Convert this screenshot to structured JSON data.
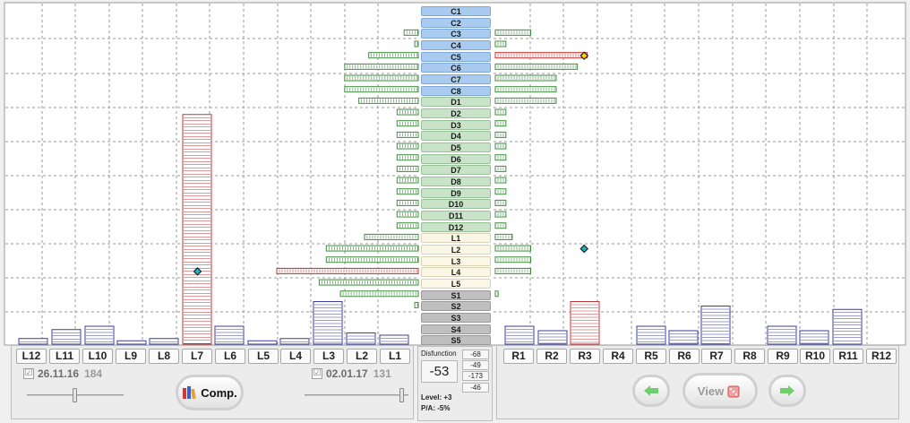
{
  "colors": {
    "blue_bar_stroke": "#3b3b9c",
    "red_bar_stroke": "#c33232",
    "green_bar_stroke": "#3f8a3f",
    "marker_yellow": "#ffd400",
    "marker_cyan": "#1fb5c8",
    "arrow_green": "#6fcf6f",
    "view_icon_red": "#e05a5a"
  },
  "vertebra_labels": [
    {
      "label": "C1",
      "group": "c"
    },
    {
      "label": "C2",
      "group": "c"
    },
    {
      "label": "C3",
      "group": "c"
    },
    {
      "label": "C4",
      "group": "c"
    },
    {
      "label": "C5",
      "group": "c"
    },
    {
      "label": "C6",
      "group": "c"
    },
    {
      "label": "C7",
      "group": "c"
    },
    {
      "label": "C8",
      "group": "c"
    },
    {
      "label": "D1",
      "group": "d"
    },
    {
      "label": "D2",
      "group": "d"
    },
    {
      "label": "D3",
      "group": "d"
    },
    {
      "label": "D4",
      "group": "d"
    },
    {
      "label": "D5",
      "group": "d"
    },
    {
      "label": "D6",
      "group": "d"
    },
    {
      "label": "D7",
      "group": "d"
    },
    {
      "label": "D8",
      "group": "d"
    },
    {
      "label": "D9",
      "group": "d"
    },
    {
      "label": "D10",
      "group": "d"
    },
    {
      "label": "D11",
      "group": "d"
    },
    {
      "label": "D12",
      "group": "d"
    },
    {
      "label": "L1",
      "group": "l"
    },
    {
      "label": "L2",
      "group": "l"
    },
    {
      "label": "L3",
      "group": "l"
    },
    {
      "label": "L4",
      "group": "l"
    },
    {
      "label": "L5",
      "group": "l"
    },
    {
      "label": "S1",
      "group": "s"
    },
    {
      "label": "S2",
      "group": "s"
    },
    {
      "label": "S3",
      "group": "s"
    },
    {
      "label": "S4",
      "group": "s"
    },
    {
      "label": "S5",
      "group": "s"
    }
  ],
  "chart_data": {
    "type": "bar",
    "horizontal_left": [
      0,
      0,
      1,
      0.25,
      3.5,
      5.2,
      5.2,
      5.2,
      4.2,
      1.5,
      1.5,
      1.5,
      1.5,
      1.5,
      1.5,
      1.5,
      1.5,
      1.5,
      1.5,
      1.5,
      3.8,
      6.5,
      6.5,
      10,
      7,
      5.5,
      0.25,
      0,
      0,
      0
    ],
    "horizontal_right": [
      0,
      0,
      2.5,
      0.75,
      6.5,
      5.8,
      4.3,
      4.3,
      4.3,
      0.75,
      0.75,
      0.75,
      0.75,
      0.75,
      0.75,
      0.75,
      0.75,
      0.75,
      0.75,
      0.75,
      1.2,
      2.5,
      2.5,
      2.5,
      0,
      0.2,
      0,
      0,
      0,
      0
    ],
    "horizontal_highlight": {
      "left": [
        23
      ],
      "right": [
        4
      ]
    },
    "markers": [
      {
        "row": 4,
        "side": "right",
        "value": 4,
        "color": "yellow"
      },
      {
        "row": 21,
        "side": "right",
        "value": 4,
        "color": "cyan"
      },
      {
        "row": 23,
        "side": "left",
        "value": 10,
        "color": "cyan"
      }
    ],
    "left_columns": [
      "L12",
      "L11",
      "L10",
      "L9",
      "L8",
      "L7",
      "L6",
      "L5",
      "L4",
      "L3",
      "L2",
      "L1"
    ],
    "left_values": [
      0.5,
      1.3,
      1.6,
      0.3,
      0.5,
      20.5,
      1.6,
      0.3,
      0.5,
      3.8,
      1.0,
      0.8
    ],
    "left_highlight": [
      "L7"
    ],
    "right_columns": [
      "R1",
      "R2",
      "R3",
      "R4",
      "R5",
      "R6",
      "R7",
      "R8",
      "R9",
      "R10",
      "R11",
      "R12"
    ],
    "right_values": [
      1.6,
      1.2,
      3.8,
      0,
      1.6,
      1.2,
      3.4,
      0,
      1.6,
      1.2,
      3.1,
      0
    ],
    "right_highlight": [
      "R3"
    ]
  },
  "left_panel": {
    "date1": "26.11.16",
    "count1": "184",
    "check1": "☑",
    "date2": "02.01.17",
    "count2": "131",
    "check2": "☑",
    "comp_label": "Comp."
  },
  "center_panel": {
    "disfunction_label": "Disfunction",
    "disfunction_value": "-53",
    "mini_values": [
      "-68",
      "-49",
      "-173",
      "-46"
    ],
    "level_text": "Level: +3",
    "pa_text": "P/A:  -5%"
  },
  "right_panel": {
    "view_label": "View",
    "back_icon": "left-arrow-icon",
    "forward_icon": "right-arrow-icon",
    "view_icon": "dice-icon"
  }
}
